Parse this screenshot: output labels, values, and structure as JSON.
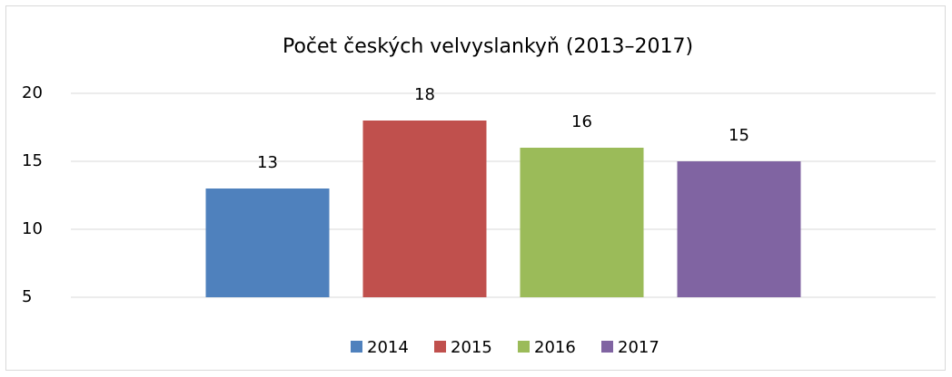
{
  "chart_data": {
    "type": "bar",
    "title": "Počet českých velvyslankyň (2013–2017)",
    "categories": [
      null
    ],
    "series": [
      {
        "name": "2014",
        "color": "#4f81bd",
        "values": [
          13
        ]
      },
      {
        "name": "2015",
        "color": "#c0504d",
        "values": [
          18
        ]
      },
      {
        "name": "2016",
        "color": "#9bbb59",
        "values": [
          16
        ]
      },
      {
        "name": "2017",
        "color": "#8064a2",
        "values": [
          15
        ]
      }
    ],
    "ylim": [
      5,
      20
    ],
    "yticks": [
      5,
      10,
      15,
      20
    ],
    "grid": true,
    "legend": "bottom"
  }
}
